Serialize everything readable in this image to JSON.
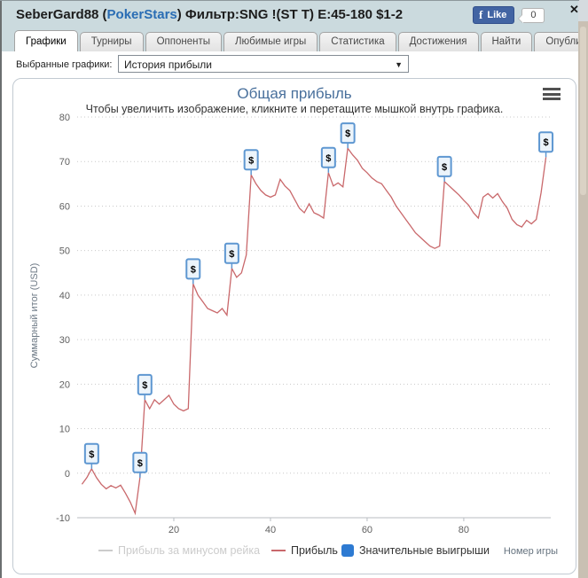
{
  "window": {
    "close_icon": "✕"
  },
  "header": {
    "title_prefix": "SeberGard88 (",
    "title_link": "PokerStars",
    "title_suffix": ") Фильтр:SNG !(ST T) E:45-180 $1-2",
    "facebook": {
      "logo_letter": "f",
      "like_label": "Like",
      "count": "0"
    }
  },
  "tabs": [
    {
      "label": "Графики",
      "active": true
    },
    {
      "label": "Турниры",
      "active": false
    },
    {
      "label": "Оппоненты",
      "active": false
    },
    {
      "label": "Любимые игры",
      "active": false
    },
    {
      "label": "Статистика",
      "active": false
    },
    {
      "label": "Достижения",
      "active": false
    },
    {
      "label": "Найти",
      "active": false
    },
    {
      "label": "Опубликовать",
      "active": false
    }
  ],
  "filter": {
    "label": "Выбранные графики:",
    "selected": "История прибыли"
  },
  "chart_data": {
    "type": "line",
    "title": "Общая прибыль",
    "subtitle": "Чтобы увеличить изображение, кликните и перетащите мышкой внутрь графика.",
    "xlabel": "Номер игры",
    "ylabel": "Суммарный итог (USD)",
    "xlim": [
      0,
      98
    ],
    "ylim": [
      -10,
      80
    ],
    "x_ticks": [
      20,
      40,
      60,
      80
    ],
    "y_ticks": [
      80,
      70,
      60,
      50,
      40,
      30,
      20,
      10,
      0,
      -10
    ],
    "grid": "dotted",
    "legend_position": "bottom",
    "x_start": 1,
    "series": [
      {
        "name": "Прибыль за минусом рейка",
        "color": "#cccccc",
        "visible": false,
        "values": []
      },
      {
        "name": "Прибыль",
        "color": "#c9686b",
        "visible": true,
        "values": [
          -2.5,
          -1,
          1,
          -1,
          -2.5,
          -3.5,
          -2.8,
          -3.3,
          -2.7,
          -4.5,
          -6.5,
          -9,
          -1,
          16.5,
          14.5,
          16.5,
          15.5,
          16.5,
          17.5,
          15.5,
          14.5,
          14,
          14.5,
          42.5,
          40,
          38.5,
          37,
          36.5,
          36,
          37,
          35.5,
          46,
          44,
          45,
          49,
          67,
          65,
          63.5,
          62.5,
          62,
          62.5,
          66,
          64.5,
          63.5,
          61.5,
          59.5,
          58.5,
          60.5,
          58.5,
          58,
          57.3,
          67.5,
          64.5,
          65.2,
          64.3,
          73,
          71.5,
          70.3,
          68.5,
          67.5,
          66.3,
          65.5,
          65,
          63.5,
          62,
          60,
          58.5,
          57,
          55.5,
          54,
          53,
          52,
          51,
          50.5,
          51,
          65.5,
          64.5,
          63.5,
          62.5,
          61.3,
          60.2,
          58.5,
          57.3,
          62,
          62.8,
          61.8,
          62.8,
          61,
          59.5,
          57,
          55.8,
          55.3,
          56.8,
          56,
          57,
          63,
          71
        ]
      }
    ],
    "flags": {
      "name": "Значительные выигрыши",
      "color": "#2d7ad2",
      "border_color": "#5e97d1",
      "fill": "#ecf4fb",
      "symbol": "$",
      "points": [
        [
          3,
          1
        ],
        [
          13,
          -1
        ],
        [
          14,
          16.5
        ],
        [
          24,
          42.5
        ],
        [
          32,
          46
        ],
        [
          36,
          67
        ],
        [
          52,
          67.5
        ],
        [
          56,
          73
        ],
        [
          76,
          65.5
        ],
        [
          97,
          71
        ]
      ]
    }
  }
}
